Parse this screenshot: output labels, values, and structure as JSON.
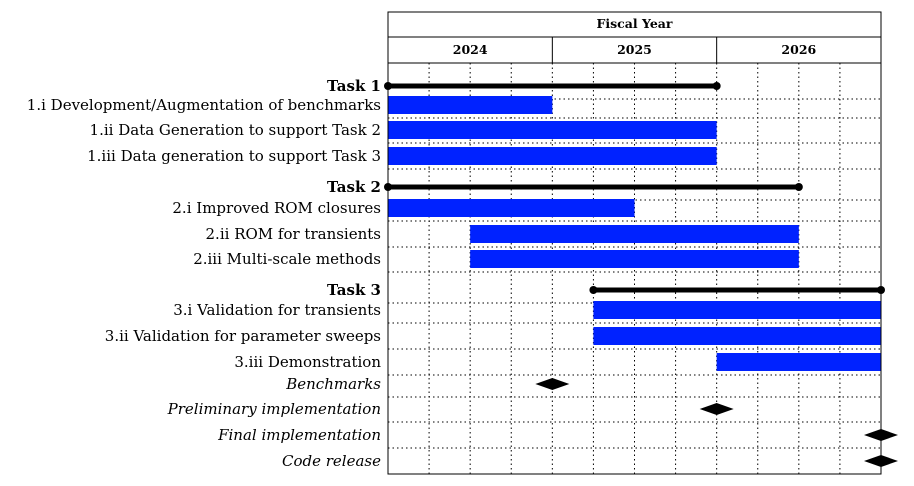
{
  "chart_data": {
    "type": "gantt",
    "header": {
      "title": "Fiscal Year",
      "years": [
        "2024",
        "2025",
        "2026"
      ]
    },
    "x_unit": "quarter",
    "x_range": [
      0,
      12
    ],
    "rows": [
      {
        "label": "Task 1",
        "kind": "summary",
        "start": 0,
        "end": 8
      },
      {
        "label": "1.i Development/Augmentation of benchmarks",
        "kind": "task",
        "start": 0,
        "end": 4
      },
      {
        "label": "1.ii Data Generation to support Task 2",
        "kind": "task",
        "start": 0,
        "end": 8
      },
      {
        "label": "1.iii Data generation to support Task 3",
        "kind": "task",
        "start": 0,
        "end": 8
      },
      {
        "label": "Task 2",
        "kind": "summary",
        "start": 0,
        "end": 10
      },
      {
        "label": "2.i Improved ROM closures",
        "kind": "task",
        "start": 0,
        "end": 6
      },
      {
        "label": "2.ii ROM for transients",
        "kind": "task",
        "start": 2,
        "end": 10
      },
      {
        "label": "2.iii Multi-scale methods",
        "kind": "task",
        "start": 2,
        "end": 10
      },
      {
        "label": "Task 3",
        "kind": "summary",
        "start": 5,
        "end": 12
      },
      {
        "label": "3.i Validation for transients",
        "kind": "task",
        "start": 5,
        "end": 12
      },
      {
        "label": "3.ii Validation for parameter sweeps",
        "kind": "task",
        "start": 5,
        "end": 12
      },
      {
        "label": "3.iii Demonstration",
        "kind": "task",
        "start": 8,
        "end": 12
      },
      {
        "label": "Benchmarks",
        "kind": "milestone",
        "at": 4
      },
      {
        "label": "Preliminary implementation",
        "kind": "milestone",
        "at": 8
      },
      {
        "label": "Final implementation",
        "kind": "milestone",
        "at": 12
      },
      {
        "label": "Code release",
        "kind": "milestone",
        "at": 12
      }
    ],
    "colors": {
      "task_bar": "#0022ff",
      "summary_bar": "#000000",
      "milestone": "#000000",
      "grid": "#000000"
    }
  }
}
